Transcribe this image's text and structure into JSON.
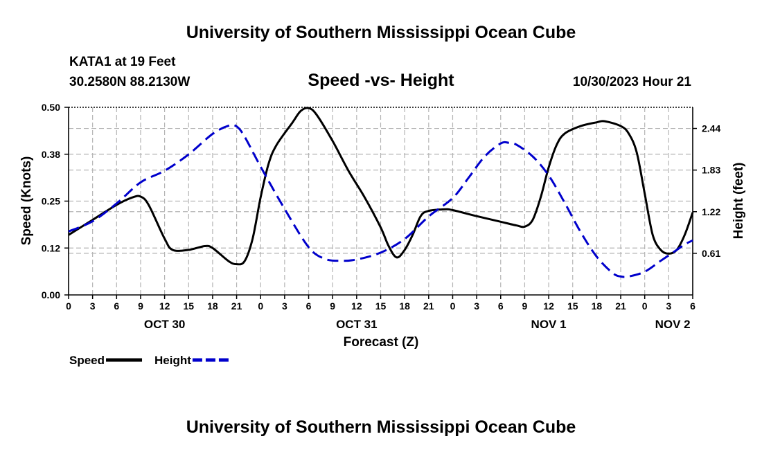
{
  "page": {
    "title_top": "University of Southern Mississippi Ocean Cube",
    "title_bottom": "University of Southern Mississippi Ocean Cube",
    "station_name": "KATA1 at 19 Feet",
    "station_coords": "30.2580N  88.2130W",
    "date_label": "10/30/2023 Hour 21"
  },
  "chart_data": {
    "type": "line",
    "title": "Speed -vs- Height",
    "xlabel": "Forecast (Z)",
    "ylabel": "Speed (Knots)",
    "ylabel_right": "Height (feet)",
    "grid": true,
    "xlim": [
      0,
      78
    ],
    "ylim": [
      0,
      0.5
    ],
    "ylim_right": [
      0,
      2.75
    ],
    "x_ticks": [
      {
        "x": 0,
        "label": "0"
      },
      {
        "x": 3,
        "label": "3"
      },
      {
        "x": 6,
        "label": "6"
      },
      {
        "x": 9,
        "label": "9"
      },
      {
        "x": 12,
        "label": "12"
      },
      {
        "x": 15,
        "label": "15"
      },
      {
        "x": 18,
        "label": "18"
      },
      {
        "x": 21,
        "label": "21"
      },
      {
        "x": 24,
        "label": "0"
      },
      {
        "x": 27,
        "label": "3"
      },
      {
        "x": 30,
        "label": "6"
      },
      {
        "x": 33,
        "label": "9"
      },
      {
        "x": 36,
        "label": "12"
      },
      {
        "x": 39,
        "label": "15"
      },
      {
        "x": 42,
        "label": "18"
      },
      {
        "x": 45,
        "label": "21"
      },
      {
        "x": 48,
        "label": "0"
      },
      {
        "x": 51,
        "label": "3"
      },
      {
        "x": 54,
        "label": "6"
      },
      {
        "x": 57,
        "label": "9"
      },
      {
        "x": 60,
        "label": "12"
      },
      {
        "x": 63,
        "label": "15"
      },
      {
        "x": 66,
        "label": "18"
      },
      {
        "x": 69,
        "label": "21"
      },
      {
        "x": 72,
        "label": "0"
      },
      {
        "x": 75,
        "label": "3"
      },
      {
        "x": 78,
        "label": "6"
      }
    ],
    "date_labels": [
      {
        "x": 12,
        "label": "OCT 30"
      },
      {
        "x": 36,
        "label": "OCT 31"
      },
      {
        "x": 60,
        "label": "NOV 1"
      },
      {
        "x": 75.5,
        "label": "NOV 2"
      }
    ],
    "y_ticks": [
      {
        "value": 0.0,
        "label": "0.00"
      },
      {
        "value": 0.125,
        "label": "0.12"
      },
      {
        "value": 0.25,
        "label": "0.25"
      },
      {
        "value": 0.375,
        "label": "0.38"
      },
      {
        "value": 0.5,
        "label": "0.50"
      }
    ],
    "y_ticks_right": [
      {
        "value": 0.61,
        "label": "0.61"
      },
      {
        "value": 1.22,
        "label": "1.22"
      },
      {
        "value": 1.83,
        "label": "1.83"
      },
      {
        "value": 2.44,
        "label": "2.44"
      }
    ],
    "series": [
      {
        "name": "Speed",
        "axis": "left",
        "color": "#000000",
        "dash": "solid",
        "points": [
          [
            0,
            0.16
          ],
          [
            3,
            0.2
          ],
          [
            6,
            0.24
          ],
          [
            8,
            0.26
          ],
          [
            9,
            0.262
          ],
          [
            10,
            0.24
          ],
          [
            12,
            0.15
          ],
          [
            13,
            0.12
          ],
          [
            15,
            0.12
          ],
          [
            17,
            0.13
          ],
          [
            18,
            0.125
          ],
          [
            20,
            0.09
          ],
          [
            21,
            0.082
          ],
          [
            22,
            0.09
          ],
          [
            23,
            0.15
          ],
          [
            24,
            0.26
          ],
          [
            25,
            0.35
          ],
          [
            26,
            0.4
          ],
          [
            28,
            0.46
          ],
          [
            29,
            0.49
          ],
          [
            30,
            0.498
          ],
          [
            31,
            0.48
          ],
          [
            33,
            0.41
          ],
          [
            35,
            0.33
          ],
          [
            37,
            0.26
          ],
          [
            39,
            0.18
          ],
          [
            40,
            0.13
          ],
          [
            41,
            0.1
          ],
          [
            42,
            0.12
          ],
          [
            43,
            0.16
          ],
          [
            44,
            0.21
          ],
          [
            45,
            0.224
          ],
          [
            47,
            0.228
          ],
          [
            48,
            0.226
          ],
          [
            51,
            0.21
          ],
          [
            54,
            0.195
          ],
          [
            56,
            0.185
          ],
          [
            57,
            0.182
          ],
          [
            58,
            0.2
          ],
          [
            59,
            0.26
          ],
          [
            60,
            0.34
          ],
          [
            61,
            0.4
          ],
          [
            62,
            0.43
          ],
          [
            64,
            0.45
          ],
          [
            66,
            0.46
          ],
          [
            67,
            0.463
          ],
          [
            69,
            0.45
          ],
          [
            70,
            0.43
          ],
          [
            71,
            0.38
          ],
          [
            72,
            0.27
          ],
          [
            73,
            0.16
          ],
          [
            74,
            0.12
          ],
          [
            75,
            0.11
          ],
          [
            76,
            0.12
          ],
          [
            77,
            0.16
          ],
          [
            78,
            0.22
          ]
        ]
      },
      {
        "name": "Height",
        "axis": "right",
        "color": "#0000cc",
        "dash": "dashed",
        "points": [
          [
            0,
            0.93
          ],
          [
            3,
            1.08
          ],
          [
            6,
            1.34
          ],
          [
            9,
            1.65
          ],
          [
            12,
            1.82
          ],
          [
            15,
            2.06
          ],
          [
            18,
            2.36
          ],
          [
            20,
            2.48
          ],
          [
            21,
            2.47
          ],
          [
            22,
            2.32
          ],
          [
            24,
            1.88
          ],
          [
            27,
            1.26
          ],
          [
            30,
            0.7
          ],
          [
            32,
            0.53
          ],
          [
            34,
            0.5
          ],
          [
            36,
            0.52
          ],
          [
            39,
            0.62
          ],
          [
            42,
            0.82
          ],
          [
            45,
            1.15
          ],
          [
            48,
            1.42
          ],
          [
            50,
            1.72
          ],
          [
            52,
            2.03
          ],
          [
            54,
            2.22
          ],
          [
            55,
            2.23
          ],
          [
            56,
            2.2
          ],
          [
            58,
            2.03
          ],
          [
            60,
            1.75
          ],
          [
            62,
            1.35
          ],
          [
            64,
            0.92
          ],
          [
            66,
            0.56
          ],
          [
            68,
            0.32
          ],
          [
            69,
            0.27
          ],
          [
            70,
            0.27
          ],
          [
            72,
            0.34
          ],
          [
            74,
            0.5
          ],
          [
            76,
            0.66
          ],
          [
            77,
            0.74
          ],
          [
            78,
            0.8
          ]
        ]
      }
    ],
    "legend": [
      {
        "name": "Speed",
        "color": "#000000",
        "dash": "solid"
      },
      {
        "name": "Height",
        "color": "#0000cc",
        "dash": "dashed"
      }
    ]
  }
}
